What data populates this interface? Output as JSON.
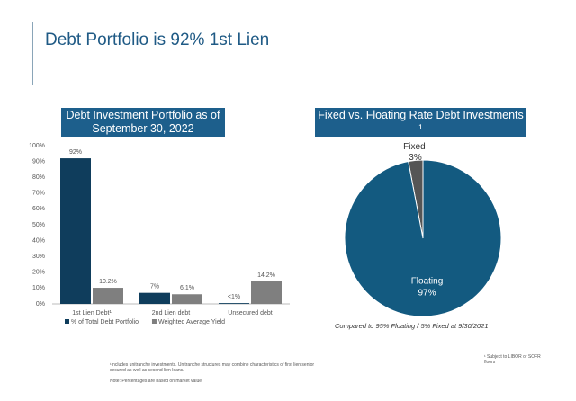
{
  "title": "Debt Portfolio is 92% 1st Lien",
  "footnotes": [
    "¹Includes unitranche investments. Unitranche structures may combine characteristics of first lien senior secured as well as second lien loans.",
    "Note: Percentages are based on market value",
    "¹ Subject to LIBOR or SOFR floors"
  ],
  "chart_data": [
    {
      "type": "bar",
      "title": "Debt Investment Portfolio as of September 30, 2022",
      "categories": [
        "1st Lien Debt¹",
        "2nd Lien debt",
        "Unsecured debt"
      ],
      "series": [
        {
          "name": "% of Total Debt Portfolio",
          "color": "#0f3d5c",
          "values": [
            92,
            7,
            0.5
          ],
          "value_labels": [
            "92%",
            "7%",
            "<1%"
          ]
        },
        {
          "name": "Weighted Average Yield",
          "color": "#7f7f7f",
          "values": [
            10.2,
            6.1,
            14.2
          ],
          "value_labels": [
            "10.2%",
            "6.1%",
            "14.2%"
          ]
        }
      ],
      "ylim": [
        0,
        100
      ],
      "yticks": [
        {
          "value": 0,
          "label": "0%"
        },
        {
          "value": 10,
          "label": "10%"
        },
        {
          "value": 20,
          "label": "20%"
        },
        {
          "value": 30,
          "label": "30%"
        },
        {
          "value": 40,
          "label": "40%"
        },
        {
          "value": 50,
          "label": "50%"
        },
        {
          "value": 60,
          "label": "60%"
        },
        {
          "value": 70,
          "label": "70%"
        },
        {
          "value": 80,
          "label": "80%"
        },
        {
          "value": 90,
          "label": "90%"
        },
        {
          "value": 100,
          "label": "100%"
        }
      ],
      "legend": "bottom"
    },
    {
      "type": "pie",
      "title": "Fixed vs. Floating Rate Debt Investments ¹",
      "categories": [
        "Fixed",
        "Floating"
      ],
      "values": [
        3,
        97
      ],
      "value_labels": [
        "3%",
        "97%"
      ],
      "colors": [
        "#555555",
        "#135a80"
      ],
      "note": "Compared to 95% Floating / 5% Fixed at 9/30/2021"
    }
  ]
}
